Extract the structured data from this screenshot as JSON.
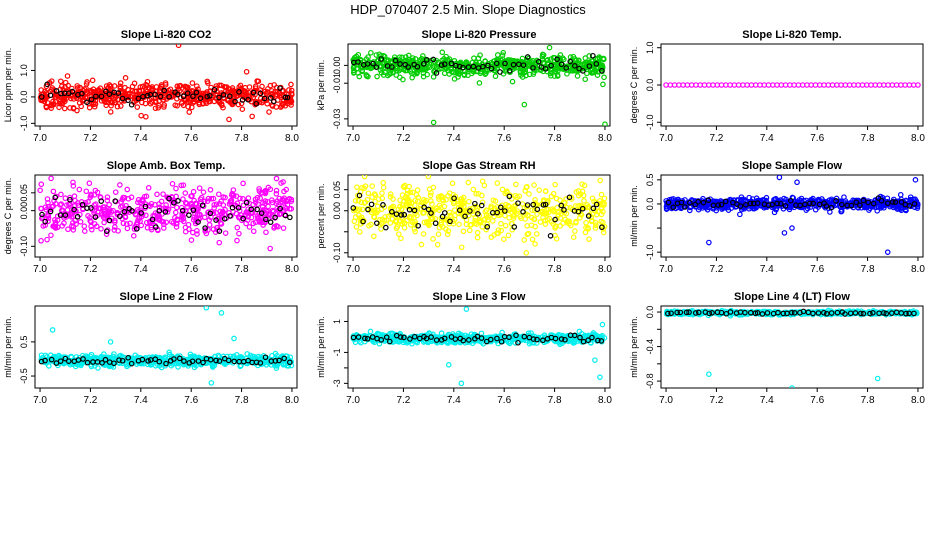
{
  "figure": {
    "title": "HDP_070407  2.5 Min. Slope Diagnostics"
  },
  "chart_data": [
    {
      "type": "scatter",
      "title": "Slope Li-820 CO2",
      "ylabel": "Licor ppm per min.",
      "xlabel": "",
      "xticks": [
        "7.0",
        "7.2",
        "7.4",
        "7.6",
        "7.8",
        "8.0"
      ],
      "yticks": [
        -1.0,
        0.0,
        1.0
      ],
      "xlim": [
        6.98,
        8.02
      ],
      "ylim": [
        -1.1,
        2.0
      ],
      "color": "#ff0000",
      "black_color": "#000000",
      "n_points": 600,
      "center": 0.05,
      "spread": 0.45,
      "outliers": [
        [
          7.55,
          1.95
        ],
        [
          7.75,
          -0.85
        ],
        [
          7.42,
          -0.75
        ],
        [
          7.82,
          0.95
        ]
      ]
    },
    {
      "type": "scatter",
      "title": "Slope Li-820 Pressure",
      "ylabel": "kPa per min.",
      "xlabel": "",
      "xticks": [
        "7.0",
        "7.2",
        "7.4",
        "7.6",
        "7.8",
        "8.0"
      ],
      "yticks": [
        -0.03,
        -0.01,
        0.0
      ],
      "ylabels": [
        "-0.03",
        "-0.01",
        "0.00"
      ],
      "xlim": [
        6.98,
        8.02
      ],
      "ylim": [
        -0.034,
        0.012
      ],
      "color": "#00cc00",
      "black_color": "#000000",
      "n_points": 600,
      "center": 0.0,
      "spread": 0.006,
      "outliers": [
        [
          7.32,
          -0.032
        ],
        [
          7.68,
          -0.022
        ],
        [
          8.0,
          -0.033
        ],
        [
          7.78,
          0.01
        ]
      ]
    },
    {
      "type": "scatter",
      "title": "Slope Li-820 Temp.",
      "ylabel": "degrees C per min.",
      "xlabel": "",
      "xticks": [
        "7.0",
        "7.2",
        "7.4",
        "7.6",
        "7.8",
        "8.0"
      ],
      "yticks": [
        -1.0,
        0.0,
        1.0
      ],
      "xlim": [
        6.98,
        8.02
      ],
      "ylim": [
        -1.1,
        1.1
      ],
      "color": "#ff00ff",
      "black_color": "#000000",
      "n_points": 60,
      "center": 0.0,
      "spread": 0.0,
      "outliers": []
    },
    {
      "type": "scatter",
      "title": "Slope Amb. Box Temp.",
      "ylabel": "degrees C per min.",
      "xlabel": "",
      "xticks": [
        "7.0",
        "7.2",
        "7.4",
        "7.6",
        "7.8",
        "8.0"
      ],
      "yticks": [
        -0.1,
        0.0,
        0.05
      ],
      "ylabels": [
        "-0.10",
        "0.00",
        "0.05"
      ],
      "xlim": [
        6.98,
        8.02
      ],
      "ylim": [
        -0.13,
        0.1
      ],
      "color": "#ff00ff",
      "black_color": "#000000",
      "n_points": 550,
      "center": 0.0,
      "spread": 0.07,
      "outliers": []
    },
    {
      "type": "scatter",
      "title": "Slope Gas Stream RH",
      "ylabel": "percent per min.",
      "xlabel": "",
      "xticks": [
        "7.0",
        "7.2",
        "7.4",
        "7.6",
        "7.8",
        "8.0"
      ],
      "yticks": [
        -0.1,
        -0.05,
        0.0,
        0.05
      ],
      "ylabels": [
        "-0.10",
        "0.00",
        "0.05"
      ],
      "xlim": [
        6.98,
        8.02
      ],
      "ylim": [
        -0.11,
        0.085
      ],
      "color": "#ffff00",
      "black_color": "#000000",
      "n_points": 550,
      "center": 0.0,
      "spread": 0.06,
      "outliers": []
    },
    {
      "type": "scatter",
      "title": "Slope Sample Flow",
      "ylabel": "ml/min per min.",
      "xlabel": "",
      "xticks": [
        "7.0",
        "7.2",
        "7.4",
        "7.6",
        "7.8",
        "8.0"
      ],
      "yticks": [
        -1.0,
        -0.5,
        0.0,
        0.5
      ],
      "ylabels": [
        "-1.0",
        "0.0",
        "0.5"
      ],
      "xlim": [
        6.98,
        8.02
      ],
      "ylim": [
        -1.1,
        0.6
      ],
      "color": "#0000ff",
      "black_color": "#000000",
      "n_points": 600,
      "center": 0.0,
      "spread": 0.12,
      "outliers": [
        [
          7.17,
          -0.8
        ],
        [
          7.45,
          0.55
        ],
        [
          7.52,
          0.45
        ],
        [
          7.88,
          -1.0
        ],
        [
          7.99,
          0.5
        ],
        [
          7.47,
          -0.6
        ],
        [
          7.5,
          -0.5
        ]
      ]
    },
    {
      "type": "scatter",
      "title": "Slope Line 2 Flow",
      "ylabel": "ml/min per min.",
      "xlabel": "",
      "xticks": [
        "7.0",
        "7.2",
        "7.4",
        "7.6",
        "7.8",
        "8.0"
      ],
      "yticks": [
        -0.5,
        0.5
      ],
      "ylabels": [
        "-0.5",
        "0.5"
      ],
      "xlim": [
        6.98,
        8.02
      ],
      "ylim": [
        -0.85,
        1.55
      ],
      "color": "#00eeee",
      "black_color": "#000000",
      "n_points": 600,
      "center": -0.05,
      "spread": 0.16,
      "outliers": [
        [
          7.66,
          1.5
        ],
        [
          7.68,
          -0.7
        ],
        [
          7.72,
          1.35
        ],
        [
          7.28,
          0.5
        ],
        [
          7.05,
          0.85
        ],
        [
          7.77,
          0.6
        ]
      ]
    },
    {
      "type": "scatter",
      "title": "Slope Line 3 Flow",
      "ylabel": "ml/min per min.",
      "xlabel": "",
      "xticks": [
        "7.0",
        "7.2",
        "7.4",
        "7.6",
        "7.8",
        "8.0"
      ],
      "yticks": [
        -3,
        -2,
        -1,
        1
      ],
      "ylabels": [
        "-3",
        "-1",
        "1"
      ],
      "xlim": [
        6.98,
        8.02
      ],
      "ylim": [
        -3.3,
        2.0
      ],
      "color": "#00eeee",
      "black_color": "#000000",
      "n_points": 600,
      "center": -0.1,
      "spread": 0.3,
      "outliers": [
        [
          7.43,
          -3.0
        ],
        [
          7.45,
          1.8
        ],
        [
          7.38,
          -1.8
        ],
        [
          7.98,
          -2.6
        ],
        [
          7.99,
          0.8
        ],
        [
          7.96,
          -1.5
        ]
      ]
    },
    {
      "type": "scatter",
      "title": "Slope Line 4 (LT) Flow",
      "ylabel": "ml/min per min.",
      "xlabel": "",
      "xticks": [
        "7.0",
        "7.2",
        "7.4",
        "7.6",
        "7.8",
        "8.0"
      ],
      "yticks": [
        -0.8,
        -0.6,
        -0.4,
        -0.2,
        0.0
      ],
      "ylabels": [
        "-0.8",
        "-0.4",
        "0.0"
      ],
      "xlim": [
        6.98,
        8.02
      ],
      "ylim": [
        -0.88,
        0.07
      ],
      "color": "#00eeee",
      "black_color": "#000000",
      "n_points": 500,
      "center": -0.01,
      "spread": 0.02,
      "outliers": [
        [
          7.17,
          -0.72
        ],
        [
          7.5,
          -0.88
        ],
        [
          7.84,
          -0.77
        ]
      ]
    }
  ]
}
